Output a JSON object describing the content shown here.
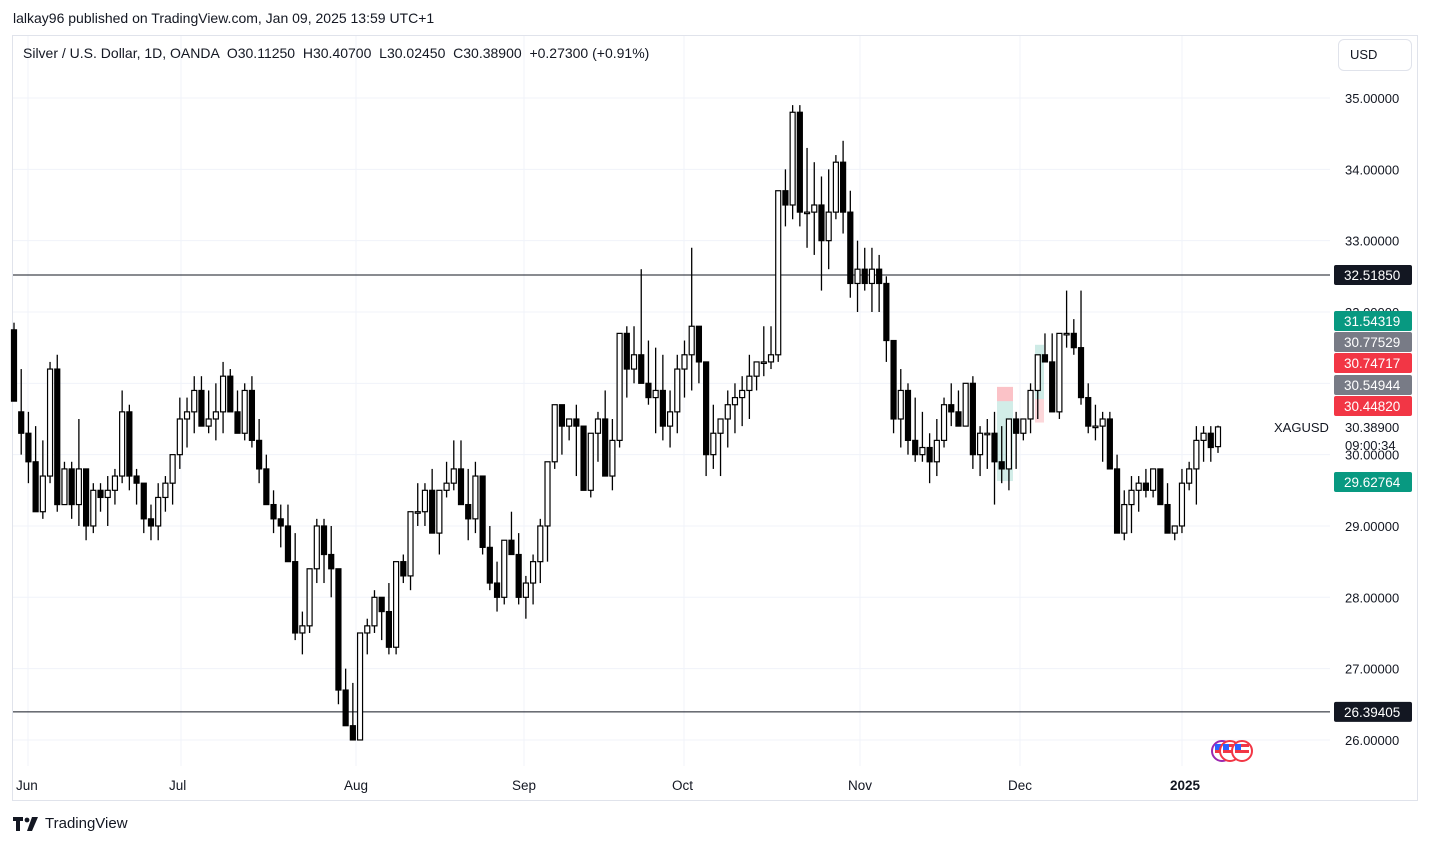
{
  "header": {
    "published_text": "lalkay96 published on TradingView.com, Jan 09, 2025 13:59 UTC+1"
  },
  "legend": {
    "symbol_title": "Silver / U.S. Dollar, 1D, OANDA",
    "open": "O30.11250",
    "high": "H30.40700",
    "low": "L30.02450",
    "close": "C30.38900",
    "change": "+0.27300 (+0.91%)"
  },
  "currency_button": {
    "label": "USD"
  },
  "footer": {
    "brand": "TradingView"
  },
  "colors": {
    "up_body": "#ffffff",
    "down_body": "#000000",
    "green_label": "#089981",
    "red_label": "#f23645",
    "gray_label": "#787b86",
    "dark_label": "#131722"
  },
  "chart_data": {
    "type": "candlestick",
    "title": "Silver / U.S. Dollar, 1D, OANDA",
    "symbol": "XAGUSD",
    "ylim": [
      25.6,
      35.6
    ],
    "y_ticks": [
      "35.00000",
      "34.00000",
      "33.00000",
      "32.00000",
      "31.00000",
      "30.00000",
      "29.00000",
      "28.00000",
      "27.00000",
      "26.00000"
    ],
    "x_ticks": [
      "Jun",
      "Jul",
      "Aug",
      "Sep",
      "Oct",
      "Nov",
      "Dec",
      "2025"
    ],
    "horizontal_lines": [
      {
        "price": 32.5185,
        "label": "32.51850"
      },
      {
        "price": 26.39405,
        "label": "26.39405"
      }
    ],
    "price_labels": [
      {
        "value": "31.54319",
        "color": "green"
      },
      {
        "value": "30.77529",
        "color": "gray"
      },
      {
        "value": "30.74717",
        "color": "red"
      },
      {
        "value": "30.54944",
        "color": "gray"
      },
      {
        "value": "30.44820",
        "color": "red"
      },
      {
        "value": "29.62764",
        "color": "green"
      }
    ],
    "last_price": {
      "symbol": "XAGUSD",
      "value": "30.38900",
      "countdown": "09:00:34"
    },
    "last_candle": {
      "open": 30.1125,
      "high": 30.407,
      "low": 30.0245,
      "close": 30.389
    },
    "ohlc": [
      [
        31.75,
        31.85,
        30.8,
        30.75
      ],
      [
        30.6,
        31.2,
        30.0,
        30.3
      ],
      [
        30.3,
        30.6,
        29.6,
        29.9
      ],
      [
        29.9,
        30.4,
        29.2,
        29.2
      ],
      [
        29.2,
        30.2,
        29.1,
        29.7
      ],
      [
        29.7,
        31.3,
        29.6,
        31.2
      ],
      [
        31.2,
        31.4,
        29.2,
        29.3
      ],
      [
        29.3,
        29.9,
        29.3,
        29.8
      ],
      [
        29.8,
        29.9,
        29.1,
        29.3
      ],
      [
        29.3,
        30.5,
        29.0,
        29.8
      ],
      [
        29.8,
        29.6,
        28.8,
        29.0
      ],
      [
        29.0,
        29.6,
        28.9,
        29.5
      ],
      [
        29.5,
        29.6,
        29.2,
        29.4
      ],
      [
        29.4,
        29.7,
        29.0,
        29.5
      ],
      [
        29.5,
        29.8,
        29.3,
        29.7
      ],
      [
        29.7,
        30.9,
        29.6,
        30.6
      ],
      [
        30.6,
        30.7,
        29.5,
        29.7
      ],
      [
        29.7,
        29.8,
        29.3,
        29.6
      ],
      [
        29.6,
        29.4,
        28.9,
        29.1
      ],
      [
        29.1,
        29.3,
        28.8,
        29.0
      ],
      [
        29.0,
        29.6,
        28.8,
        29.4
      ],
      [
        29.4,
        29.7,
        29.2,
        29.6
      ],
      [
        29.6,
        30.0,
        29.3,
        30.0
      ],
      [
        30.0,
        30.8,
        29.8,
        30.5
      ],
      [
        30.5,
        30.8,
        30.1,
        30.6
      ],
      [
        30.6,
        31.1,
        30.3,
        30.9
      ],
      [
        30.9,
        31.1,
        30.5,
        30.4
      ],
      [
        30.4,
        30.9,
        30.3,
        30.5
      ],
      [
        30.5,
        31.0,
        30.2,
        30.6
      ],
      [
        30.6,
        31.3,
        30.3,
        31.1
      ],
      [
        31.1,
        31.2,
        30.6,
        30.6
      ],
      [
        30.6,
        30.9,
        30.3,
        30.3
      ],
      [
        30.3,
        31.0,
        30.2,
        30.9
      ],
      [
        30.9,
        31.1,
        30.1,
        30.2
      ],
      [
        30.2,
        30.5,
        29.6,
        29.8
      ],
      [
        29.8,
        30.0,
        29.4,
        29.3
      ],
      [
        29.3,
        29.5,
        28.9,
        29.1
      ],
      [
        29.1,
        29.3,
        28.7,
        29.0
      ],
      [
        29.0,
        29.3,
        28.6,
        28.5
      ],
      [
        28.5,
        28.9,
        27.4,
        27.5
      ],
      [
        27.5,
        27.8,
        27.2,
        27.6
      ],
      [
        27.6,
        28.3,
        27.5,
        28.4
      ],
      [
        28.4,
        29.1,
        28.2,
        29.0
      ],
      [
        29.0,
        29.1,
        28.2,
        28.6
      ],
      [
        28.6,
        29.0,
        28.0,
        28.4
      ],
      [
        28.4,
        28.3,
        26.5,
        26.7
      ],
      [
        26.7,
        27.0,
        26.4,
        26.2
      ],
      [
        26.2,
        26.8,
        26.4,
        26.0
      ],
      [
        26.0,
        27.3,
        26.0,
        27.5
      ],
      [
        27.5,
        27.7,
        27.2,
        27.6
      ],
      [
        27.6,
        28.1,
        27.5,
        28.0
      ],
      [
        28.0,
        28.0,
        27.4,
        27.8
      ],
      [
        27.8,
        28.2,
        27.2,
        27.3
      ],
      [
        27.3,
        28.4,
        27.2,
        28.5
      ],
      [
        28.5,
        28.6,
        28.2,
        28.3
      ],
      [
        28.3,
        29.1,
        28.1,
        29.2
      ],
      [
        29.2,
        29.6,
        29.0,
        29.2
      ],
      [
        29.2,
        29.6,
        29.0,
        29.5
      ],
      [
        29.5,
        29.8,
        29.0,
        28.9
      ],
      [
        28.9,
        29.5,
        28.6,
        29.5
      ],
      [
        29.5,
        29.9,
        29.4,
        29.6
      ],
      [
        29.6,
        30.2,
        29.5,
        29.8
      ],
      [
        29.8,
        30.2,
        29.4,
        29.3
      ],
      [
        29.3,
        29.8,
        28.8,
        29.1
      ],
      [
        29.1,
        29.9,
        28.9,
        29.7
      ],
      [
        29.7,
        29.5,
        28.6,
        28.7
      ],
      [
        28.7,
        29.0,
        28.1,
        28.2
      ],
      [
        28.2,
        28.5,
        27.8,
        28.0
      ],
      [
        28.0,
        28.8,
        27.9,
        28.8
      ],
      [
        28.8,
        29.2,
        28.6,
        28.6
      ],
      [
        28.6,
        28.9,
        27.9,
        28.0
      ],
      [
        28.0,
        28.3,
        27.7,
        28.2
      ],
      [
        28.2,
        28.6,
        27.9,
        28.5
      ],
      [
        28.5,
        29.1,
        28.2,
        29.0
      ],
      [
        29.0,
        29.0,
        28.5,
        29.9
      ],
      [
        29.9,
        30.7,
        29.8,
        30.7
      ],
      [
        30.7,
        30.5,
        30.0,
        30.4
      ],
      [
        30.4,
        30.5,
        30.2,
        30.5
      ],
      [
        30.5,
        30.7,
        29.7,
        30.4
      ],
      [
        30.4,
        30.3,
        29.5,
        29.5
      ],
      [
        29.5,
        30.3,
        29.4,
        30.3
      ],
      [
        30.3,
        30.6,
        29.9,
        30.5
      ],
      [
        30.5,
        30.9,
        29.7,
        29.7
      ],
      [
        29.7,
        30.5,
        29.5,
        30.2
      ],
      [
        30.2,
        31.7,
        30.1,
        31.7
      ],
      [
        31.7,
        31.8,
        30.8,
        31.2
      ],
      [
        31.2,
        31.8,
        31.0,
        31.4
      ],
      [
        31.4,
        32.6,
        31.2,
        31.0
      ],
      [
        31.0,
        31.6,
        30.7,
        30.8
      ],
      [
        30.8,
        31.5,
        30.3,
        30.9
      ],
      [
        30.9,
        31.4,
        30.2,
        30.4
      ],
      [
        30.4,
        30.9,
        30.1,
        30.6
      ],
      [
        30.6,
        31.4,
        30.3,
        31.2
      ],
      [
        31.2,
        31.6,
        30.8,
        31.4
      ],
      [
        31.4,
        32.9,
        30.9,
        31.8
      ],
      [
        31.8,
        31.8,
        31.0,
        31.3
      ],
      [
        31.3,
        30.9,
        29.7,
        30.0
      ],
      [
        30.0,
        30.7,
        29.8,
        30.3
      ],
      [
        30.3,
        30.3,
        29.7,
        30.5
      ],
      [
        30.5,
        30.9,
        30.1,
        30.7
      ],
      [
        30.7,
        31.0,
        30.3,
        30.8
      ],
      [
        30.8,
        31.1,
        30.4,
        30.9
      ],
      [
        30.9,
        31.4,
        30.5,
        31.1
      ],
      [
        31.1,
        31.2,
        30.9,
        31.3
      ],
      [
        31.3,
        31.8,
        31.1,
        31.3
      ],
      [
        31.3,
        31.8,
        31.2,
        31.4
      ],
      [
        31.4,
        33.7,
        31.3,
        33.7
      ],
      [
        33.7,
        34.0,
        33.2,
        33.5
      ],
      [
        33.5,
        34.9,
        33.3,
        34.8
      ],
      [
        34.8,
        34.9,
        33.2,
        33.4
      ],
      [
        33.4,
        34.3,
        32.9,
        33.4
      ],
      [
        33.4,
        34.1,
        32.8,
        33.5
      ],
      [
        33.5,
        33.9,
        32.3,
        33.0
      ],
      [
        33.0,
        34.0,
        32.6,
        33.4
      ],
      [
        33.4,
        34.2,
        33.3,
        34.1
      ],
      [
        34.1,
        34.4,
        33.1,
        33.4
      ],
      [
        33.4,
        33.7,
        32.2,
        32.4
      ],
      [
        32.4,
        33.0,
        32.0,
        32.6
      ],
      [
        32.6,
        32.9,
        32.3,
        32.4
      ],
      [
        32.4,
        32.9,
        32.0,
        32.6
      ],
      [
        32.6,
        32.8,
        32.0,
        32.4
      ],
      [
        32.4,
        32.5,
        31.3,
        31.6
      ],
      [
        31.6,
        31.6,
        30.3,
        30.5
      ],
      [
        30.5,
        31.2,
        30.1,
        30.9
      ],
      [
        30.9,
        31.0,
        30.0,
        30.2
      ],
      [
        30.2,
        30.8,
        29.9,
        30.0
      ],
      [
        30.0,
        30.6,
        29.9,
        30.1
      ],
      [
        30.1,
        30.3,
        29.6,
        29.9
      ],
      [
        29.9,
        30.5,
        29.7,
        30.2
      ],
      [
        30.2,
        30.8,
        30.1,
        30.7
      ],
      [
        30.7,
        31.0,
        30.4,
        30.6
      ],
      [
        30.6,
        30.9,
        30.4,
        30.4
      ],
      [
        30.4,
        31.0,
        30.4,
        31.0
      ],
      [
        31.0,
        31.1,
        29.8,
        30.0
      ],
      [
        30.0,
        30.4,
        29.7,
        30.3
      ],
      [
        30.3,
        30.5,
        29.8,
        30.3
      ],
      [
        30.3,
        30.6,
        29.3,
        29.9
      ],
      [
        29.9,
        30.4,
        29.6,
        29.8
      ],
      [
        29.8,
        30.5,
        29.5,
        30.5
      ],
      [
        30.5,
        30.6,
        29.8,
        30.3
      ],
      [
        30.3,
        30.5,
        30.2,
        30.5
      ],
      [
        30.5,
        31.0,
        30.3,
        30.9
      ],
      [
        30.9,
        31.3,
        30.5,
        31.4
      ],
      [
        31.4,
        31.7,
        31.3,
        31.3
      ],
      [
        31.3,
        31.7,
        30.8,
        30.6
      ],
      [
        30.6,
        31.5,
        30.5,
        31.7
      ],
      [
        31.7,
        32.3,
        31.5,
        31.7
      ],
      [
        31.7,
        31.9,
        31.4,
        31.5
      ],
      [
        31.5,
        32.3,
        30.7,
        30.8
      ],
      [
        30.8,
        31.0,
        30.3,
        30.4
      ],
      [
        30.4,
        30.7,
        30.2,
        30.4
      ],
      [
        30.4,
        30.6,
        29.9,
        30.5
      ],
      [
        30.5,
        30.6,
        29.8,
        29.8
      ],
      [
        29.8,
        30.0,
        29.1,
        28.9
      ],
      [
        28.9,
        29.5,
        28.8,
        29.3
      ],
      [
        29.3,
        29.7,
        28.9,
        29.5
      ],
      [
        29.5,
        29.7,
        29.2,
        29.6
      ],
      [
        29.6,
        29.8,
        29.4,
        29.5
      ],
      [
        29.5,
        29.8,
        29.4,
        29.8
      ],
      [
        29.8,
        29.8,
        29.3,
        29.3
      ],
      [
        29.3,
        29.6,
        28.9,
        28.9
      ],
      [
        28.9,
        29.0,
        28.8,
        29.0
      ],
      [
        29.0,
        29.8,
        28.9,
        29.6
      ],
      [
        29.6,
        29.9,
        29.5,
        29.8
      ],
      [
        29.8,
        30.4,
        29.3,
        30.2
      ],
      [
        30.2,
        30.4,
        29.9,
        30.3
      ],
      [
        30.3,
        30.4,
        29.9,
        30.1
      ],
      [
        30.1125,
        30.407,
        30.0245,
        30.389
      ]
    ]
  }
}
